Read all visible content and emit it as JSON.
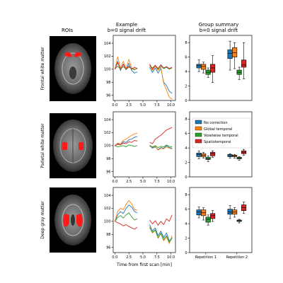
{
  "columns": {
    "rois_title": "ROIs",
    "example_title_1": "Example",
    "example_title_2": "b=0 signal drift",
    "group_title_1": "Group summary",
    "group_title_2": "b=0 signal drift"
  },
  "rows": [
    {
      "label": "Frontal white matter"
    },
    {
      "label": "Parietal white matter"
    },
    {
      "label": "Deep gray matter"
    }
  ],
  "legend": {
    "entries": [
      "No correction",
      "Global temporal",
      "Voxelwise temporal",
      "Spatiotemporal"
    ]
  },
  "colors": {
    "blue": "#1f77b4",
    "orange": "#ff7f0e",
    "green": "#2ca02c",
    "red": "#d62728",
    "roi_red": "#ff1a1a"
  },
  "example_xlabel": "Time from first scan [min]",
  "example_xticks": [
    "0.0",
    "2.5",
    "5.0",
    "7.5",
    "10.0"
  ],
  "example_yticks": [
    "96",
    "98",
    "100",
    "102",
    "104"
  ],
  "group_yticks": [
    "0",
    "2",
    "4",
    "6",
    "8"
  ],
  "group_xticks": [
    "Repetition 1",
    "Repetition 2"
  ],
  "chart_data": [
    {
      "type": "line",
      "title": "Example b=0 signal drift",
      "row": "Frontal white matter",
      "xlabel": "Time from first scan [min]",
      "xlim": [
        -0.3,
        10.8
      ],
      "ylim": [
        95.2,
        105.2
      ],
      "segments": [
        {
          "x": [
            0.0,
            0.5,
            1.0,
            1.5,
            2.0,
            2.5,
            3.0,
            3.5,
            4.0
          ],
          "series": [
            {
              "values": [
                100.0,
                101.2,
                99.8,
                100.8,
                99.9,
                100.9,
                99.8,
                99.4,
                99.6
              ]
            },
            {
              "values": [
                100.0,
                101.9,
                100.2,
                101.2,
                100.1,
                101.5,
                100.2,
                100.0,
                100.1
              ]
            },
            {
              "values": [
                100.0,
                100.5,
                100.0,
                100.4,
                100.0,
                100.3,
                100.1,
                99.9,
                100.2
              ]
            },
            {
              "values": [
                100.0,
                101.0,
                100.0,
                100.7,
                100.0,
                100.5,
                100.0,
                100.3,
                100.1
              ]
            }
          ]
        },
        {
          "x": [
            6.2,
            6.7,
            7.2,
            7.7,
            8.2,
            8.7,
            9.2,
            9.7,
            10.2
          ],
          "series": [
            {
              "values": [
                100.3,
                99.5,
                100.2,
                99.4,
                100.1,
                98.0,
                97.5,
                96.6,
                96.3
              ]
            },
            {
              "values": [
                100.6,
                99.8,
                100.5,
                99.8,
                100.3,
                97.8,
                96.8,
                95.7,
                95.4
              ]
            },
            {
              "values": [
                100.5,
                100.2,
                100.6,
                100.0,
                100.5,
                100.1,
                100.3,
                100.0,
                100.2
              ]
            },
            {
              "values": [
                100.8,
                100.0,
                100.6,
                100.1,
                100.7,
                100.2,
                100.4,
                100.1,
                100.3
              ]
            }
          ]
        }
      ]
    },
    {
      "type": "line",
      "title": "Example b=0 signal drift",
      "row": "Parietal white matter",
      "xlabel": "Time from first scan [min]",
      "xlim": [
        -0.3,
        10.8
      ],
      "ylim": [
        95.2,
        105.2
      ],
      "segments": [
        {
          "x": [
            0.0,
            0.5,
            1.0,
            1.5,
            2.0,
            2.5,
            3.0,
            3.5,
            4.0
          ],
          "series": [
            {
              "values": [
                100.0,
                100.3,
                100.1,
                100.6,
                100.5,
                100.9,
                101.0,
                101.3,
                101.4
              ]
            },
            {
              "values": [
                100.0,
                100.4,
                100.3,
                100.8,
                101.0,
                101.3,
                101.6,
                101.8,
                101.9
              ]
            },
            {
              "values": [
                100.0,
                99.8,
                99.9,
                100.0,
                99.8,
                100.1,
                100.0,
                99.9,
                100.0
              ]
            },
            {
              "values": [
                100.0,
                100.2,
                100.1,
                100.4,
                100.3,
                100.6,
                100.5,
                100.8,
                100.7
              ]
            }
          ]
        },
        {
          "x": [
            6.2,
            6.7,
            7.2,
            7.7,
            8.2,
            8.7,
            9.2,
            9.7,
            10.2
          ],
          "series": [
            {
              "values": [
                100.0,
                99.6,
                99.8,
                99.4,
                99.7,
                99.6,
                100.0,
                99.7,
                99.6
              ]
            },
            {
              "values": [
                100.1,
                99.7,
                99.9,
                99.3,
                99.6,
                99.5,
                99.8,
                99.6,
                99.5
              ]
            },
            {
              "values": [
                100.0,
                99.8,
                100.0,
                99.7,
                99.9,
                99.8,
                100.1,
                99.9,
                99.8
              ]
            },
            {
              "values": [
                100.5,
                100.3,
                101.0,
                101.3,
                101.6,
                102.0,
                102.4,
                102.6,
                102.8
              ]
            }
          ]
        }
      ]
    },
    {
      "type": "line",
      "title": "Example b=0 signal drift",
      "row": "Deep gray matter",
      "xlabel": "Time from first scan [min]",
      "xlim": [
        -0.3,
        10.8
      ],
      "ylim": [
        95.2,
        105.2
      ],
      "segments": [
        {
          "x": [
            0.0,
            0.5,
            1.0,
            1.5,
            2.0,
            2.5,
            3.0,
            3.5,
            4.0
          ],
          "series": [
            {
              "values": [
                100.0,
                101.0,
                101.5,
                101.2,
                102.0,
                102.5,
                102.2,
                101.5,
                101.3
              ]
            },
            {
              "values": [
                100.0,
                101.5,
                102.0,
                101.8,
                102.6,
                103.2,
                102.7,
                101.8,
                101.7
              ]
            },
            {
              "values": [
                100.0,
                100.6,
                100.9,
                100.5,
                101.0,
                101.3,
                100.7,
                100.2,
                100.4
              ]
            },
            {
              "values": [
                100.0,
                99.8,
                99.6,
                99.3,
                99.5,
                99.2,
                99.0,
                98.8,
                99.1
              ]
            }
          ]
        },
        {
          "x": [
            6.2,
            6.7,
            7.2,
            7.7,
            8.2,
            8.7,
            9.2,
            9.7,
            10.2
          ],
          "series": [
            {
              "values": [
                99.5,
                98.5,
                99.0,
                97.8,
                98.5,
                97.5,
                98.2,
                97.0,
                97.5
              ]
            },
            {
              "values": [
                99.2,
                98.2,
                98.6,
                97.4,
                98.1,
                97.0,
                97.6,
                96.6,
                97.8
              ]
            },
            {
              "values": [
                99.0,
                98.3,
                98.7,
                97.5,
                98.2,
                97.2,
                97.8,
                96.8,
                97.4
              ]
            },
            {
              "values": [
                100.2,
                99.6,
                100.1,
                99.4,
                100.0,
                99.5,
                100.4,
                100.0,
                101.0
              ]
            }
          ]
        }
      ]
    },
    {
      "type": "box",
      "title": "Group summary b=0 signal drift",
      "row": "Frontal white matter",
      "categories": [
        "Repetition 1",
        "Repetition 2"
      ],
      "ylim": [
        0,
        9
      ],
      "series": [
        {
          "name": "No correction",
          "boxes": [
            {
              "whislo": 4.0,
              "q1": 4.5,
              "med": 4.8,
              "q3": 5.0,
              "whishi": 5.6
            },
            {
              "whislo": 4.2,
              "q1": 5.8,
              "med": 6.5,
              "q3": 7.0,
              "whishi": 8.2
            }
          ]
        },
        {
          "name": "Global temporal",
          "boxes": [
            {
              "whislo": 3.8,
              "q1": 4.3,
              "med": 4.7,
              "q3": 5.0,
              "whishi": 5.3
            },
            {
              "whislo": 4.4,
              "q1": 6.0,
              "med": 6.6,
              "q3": 7.3,
              "whishi": 8.0
            }
          ]
        },
        {
          "name": "Voxelwise temporal",
          "boxes": [
            {
              "whislo": 3.2,
              "q1": 3.6,
              "med": 3.9,
              "q3": 4.2,
              "whishi": 4.5
            },
            {
              "whislo": 2.9,
              "q1": 3.6,
              "med": 3.9,
              "q3": 4.2,
              "whishi": 4.6
            }
          ]
        },
        {
          "name": "Spatiotemporal",
          "boxes": [
            {
              "whislo": 2.5,
              "q1": 3.9,
              "med": 4.5,
              "q3": 5.0,
              "whishi": 6.2
            },
            {
              "whislo": 3.0,
              "q1": 4.6,
              "med": 4.9,
              "q3": 5.6,
              "whishi": 8.0
            }
          ]
        }
      ]
    },
    {
      "type": "box",
      "title": "Group summary b=0 signal drift",
      "row": "Parietal white matter",
      "categories": [
        "Repetition 1",
        "Repetition 2"
      ],
      "ylim": [
        0,
        9
      ],
      "series": [
        {
          "name": "No correction",
          "boxes": [
            {
              "whislo": 2.5,
              "q1": 2.8,
              "med": 3.1,
              "q3": 3.3,
              "whishi": 3.6
            },
            {
              "whislo": 2.6,
              "q1": 2.8,
              "med": 2.9,
              "q3": 3.1,
              "whishi": 3.2
            }
          ]
        },
        {
          "name": "Global temporal",
          "boxes": [
            {
              "whislo": 2.6,
              "q1": 2.8,
              "med": 3.0,
              "q3": 3.2,
              "whishi": 3.4
            },
            {
              "whislo": 2.6,
              "q1": 2.8,
              "med": 2.9,
              "q3": 3.0,
              "whishi": 3.1
            }
          ]
        },
        {
          "name": "Voxelwise temporal",
          "boxes": [
            {
              "whislo": 2.1,
              "q1": 2.4,
              "med": 2.5,
              "q3": 2.7,
              "whishi": 2.9
            },
            {
              "whislo": 2.3,
              "q1": 2.5,
              "med": 2.6,
              "q3": 2.7,
              "whishi": 2.8
            }
          ]
        },
        {
          "name": "Spatiotemporal",
          "boxes": [
            {
              "whislo": 2.7,
              "q1": 2.9,
              "med": 3.2,
              "q3": 3.4,
              "whishi": 3.6
            },
            {
              "whislo": 3.0,
              "q1": 3.2,
              "med": 3.4,
              "q3": 3.6,
              "whishi": 3.8
            }
          ]
        }
      ]
    },
    {
      "type": "box",
      "title": "Group summary b=0 signal drift",
      "row": "Deep gray matter",
      "categories": [
        "Repetition 1",
        "Repetition 2"
      ],
      "ylim": [
        0,
        9
      ],
      "series": [
        {
          "name": "No correction",
          "boxes": [
            {
              "whislo": 4.8,
              "q1": 5.2,
              "med": 5.6,
              "q3": 5.9,
              "whishi": 6.3
            },
            {
              "whislo": 4.7,
              "q1": 5.3,
              "med": 5.6,
              "q3": 6.0,
              "whishi": 6.5
            }
          ]
        },
        {
          "name": "Global temporal",
          "boxes": [
            {
              "whislo": 4.5,
              "q1": 5.1,
              "med": 5.5,
              "q3": 5.9,
              "whishi": 6.2
            },
            {
              "whislo": 4.9,
              "q1": 5.3,
              "med": 5.6,
              "q3": 5.9,
              "whishi": 6.2
            }
          ]
        },
        {
          "name": "Voxelwise temporal",
          "boxes": [
            {
              "whislo": 3.8,
              "q1": 4.2,
              "med": 4.6,
              "q3": 4.9,
              "whishi": 5.2
            },
            {
              "whislo": 4.1,
              "q1": 4.3,
              "med": 4.4,
              "q3": 4.5,
              "whishi": 4.6
            }
          ]
        },
        {
          "name": "Spatiotemporal",
          "boxes": [
            {
              "whislo": 4.3,
              "q1": 4.7,
              "med": 5.1,
              "q3": 5.4,
              "whishi": 5.8
            },
            {
              "whislo": 5.4,
              "q1": 5.8,
              "med": 6.2,
              "q3": 6.6,
              "whishi": 7.0
            }
          ]
        }
      ]
    }
  ]
}
